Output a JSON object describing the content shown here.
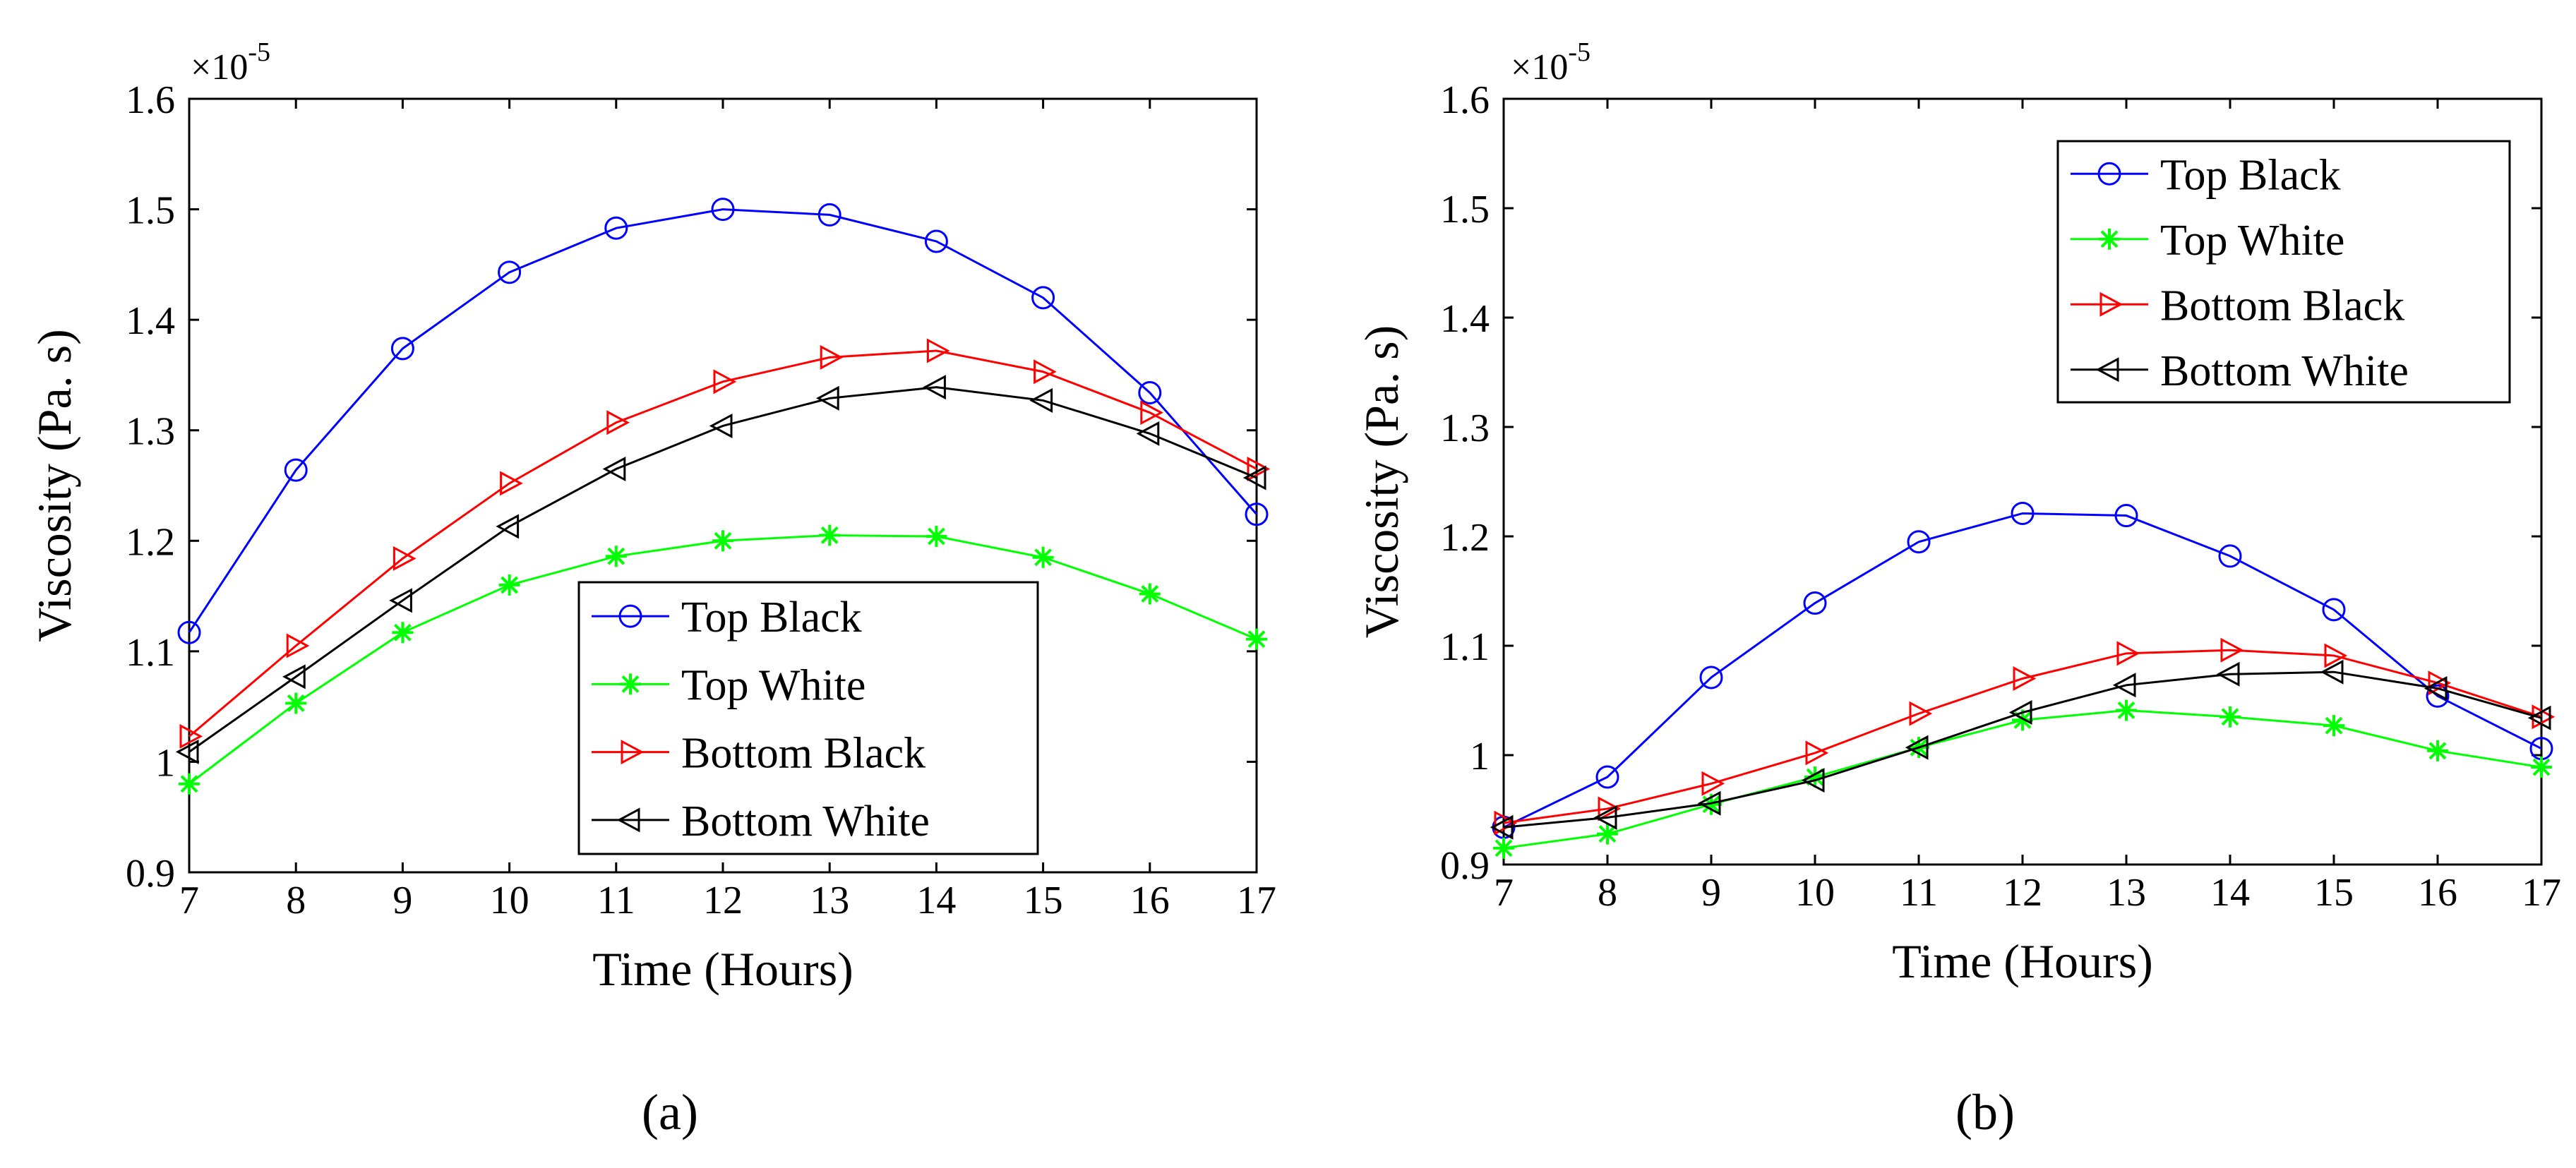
{
  "chart_data": [
    {
      "type": "line",
      "panel_label": "(a)",
      "multiplier_base": "×10",
      "multiplier_exp": "-5",
      "xlabel": "Time (Hours)",
      "ylabel": "Viscosity (Pa. s)",
      "xlim": [
        7,
        17
      ],
      "ylim": [
        0.9,
        1.6
      ],
      "x": [
        7,
        8,
        9,
        10,
        11,
        12,
        13,
        14,
        15,
        16,
        17
      ],
      "x_ticks": [
        "7",
        "8",
        "9",
        "10",
        "11",
        "12",
        "13",
        "14",
        "15",
        "16",
        "17"
      ],
      "y_ticks": [
        0.9,
        1,
        1.1,
        1.2,
        1.3,
        1.4,
        1.5,
        1.6
      ],
      "y_tick_labels": [
        "0.9",
        "1",
        "1.1",
        "1.2",
        "1.3",
        "1.4",
        "1.5",
        "1.6"
      ],
      "legend_position": "bottom-right",
      "series": [
        {
          "name": "Top Black",
          "color": "#0000ff",
          "marker": "circle",
          "values": [
            1.117,
            1.264,
            1.374,
            1.443,
            1.483,
            1.5,
            1.495,
            1.471,
            1.42,
            1.334,
            1.224
          ]
        },
        {
          "name": "Top White",
          "color": "#00ff00",
          "marker": "asterisk",
          "values": [
            0.98,
            1.053,
            1.117,
            1.16,
            1.186,
            1.2,
            1.205,
            1.204,
            1.185,
            1.152,
            1.111
          ]
        },
        {
          "name": "Bottom Black",
          "color": "#ff0000",
          "marker": "triangle-right",
          "values": [
            1.023,
            1.105,
            1.184,
            1.252,
            1.307,
            1.344,
            1.366,
            1.372,
            1.353,
            1.316,
            1.265
          ]
        },
        {
          "name": "Bottom White",
          "color": "#000000",
          "marker": "triangle-left",
          "values": [
            1.009,
            1.077,
            1.146,
            1.213,
            1.265,
            1.304,
            1.329,
            1.339,
            1.327,
            1.297,
            1.257
          ]
        }
      ]
    },
    {
      "type": "line",
      "panel_label": "(b)",
      "multiplier_base": "×10",
      "multiplier_exp": "-5",
      "xlabel": "Time (Hours)",
      "ylabel": "Viscosity (Pa. s)",
      "xlim": [
        7,
        17
      ],
      "ylim": [
        0.9,
        1.6
      ],
      "x": [
        7,
        8,
        9,
        10,
        11,
        12,
        13,
        14,
        15,
        16,
        17
      ],
      "x_ticks": [
        "7",
        "8",
        "9",
        "10",
        "11",
        "12",
        "13",
        "14",
        "15",
        "16",
        "17"
      ],
      "y_ticks": [
        0.9,
        1,
        1.1,
        1.2,
        1.3,
        1.4,
        1.5,
        1.6
      ],
      "y_tick_labels": [
        "0.9",
        "1",
        "1.1",
        "1.2",
        "1.3",
        "1.4",
        "1.5",
        "1.6"
      ],
      "legend_position": "top-right",
      "series": [
        {
          "name": "Top Black",
          "color": "#0000ff",
          "marker": "circle",
          "values": [
            0.934,
            0.98,
            1.071,
            1.139,
            1.195,
            1.221,
            1.219,
            1.182,
            1.133,
            1.054,
            1.006
          ]
        },
        {
          "name": "Top White",
          "color": "#00ff00",
          "marker": "asterisk",
          "values": [
            0.915,
            0.928,
            0.955,
            0.98,
            1.007,
            1.032,
            1.041,
            1.035,
            1.027,
            1.004,
            0.989
          ]
        },
        {
          "name": "Bottom Black",
          "color": "#ff0000",
          "marker": "triangle-right",
          "values": [
            0.938,
            0.951,
            0.974,
            1.002,
            1.038,
            1.07,
            1.093,
            1.096,
            1.091,
            1.066,
            1.035
          ]
        },
        {
          "name": "Bottom White",
          "color": "#000000",
          "marker": "triangle-left",
          "values": [
            0.934,
            0.943,
            0.956,
            0.977,
            1.007,
            1.039,
            1.064,
            1.074,
            1.076,
            1.061,
            1.034
          ]
        }
      ]
    }
  ]
}
